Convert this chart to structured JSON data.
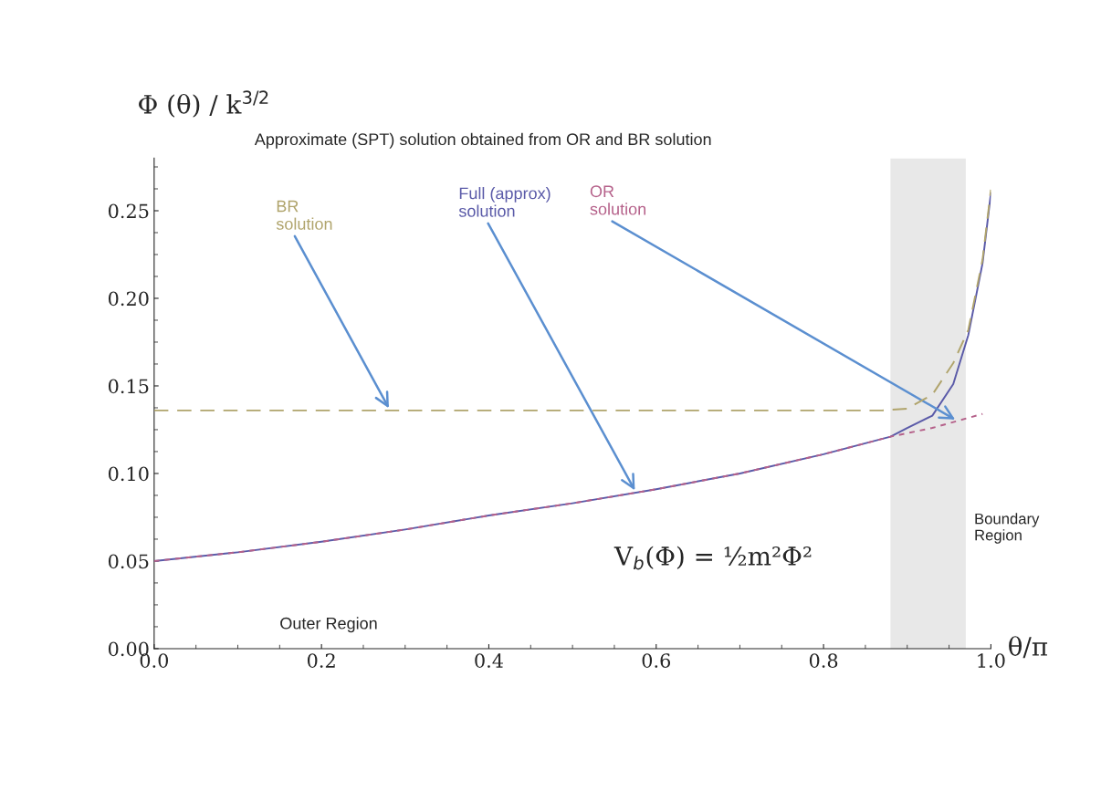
{
  "chart_data": {
    "type": "line",
    "title": "Approximate (SPT) solution obtained from OR and BR solution",
    "xlabel": "θ/π",
    "ylabel": "Φ (θ) / k$^{3/2}$",
    "series": [
      {
        "name": "Full (approx)\nsolution",
        "color": "#5a5aa8",
        "line_style": "solid",
        "x": [
          0,
          0.1,
          0.2,
          0.3,
          0.4,
          0.5,
          0.6,
          0.7,
          0.8,
          0.88,
          0.9,
          0.93,
          0.955,
          0.973,
          0.99,
          1.0
        ],
        "values": [
          0.05,
          0.055,
          0.061,
          0.068,
          0.076,
          0.083,
          0.091,
          0.1,
          0.111,
          0.121,
          0.126,
          0.133,
          0.151,
          0.179,
          0.22,
          0.26
        ]
      },
      {
        "name": "OR\nsolution",
        "color": "#b5618a",
        "line_style": "dotted",
        "x": [
          0,
          0.1,
          0.2,
          0.3,
          0.4,
          0.5,
          0.6,
          0.7,
          0.8,
          0.88,
          0.93,
          0.99
        ],
        "values": [
          0.05,
          0.055,
          0.061,
          0.068,
          0.076,
          0.083,
          0.091,
          0.1,
          0.111,
          0.121,
          0.126,
          0.134
        ]
      },
      {
        "name": "BR\nsolution",
        "color": "#b0a46c",
        "line_style": "dashed",
        "x": [
          0,
          0.87,
          0.9,
          0.93,
          0.955,
          0.973,
          0.99,
          1.0
        ],
        "values": [
          0.136,
          0.136,
          0.137,
          0.145,
          0.163,
          0.182,
          0.222,
          0.262
        ]
      }
    ],
    "annotations": [
      "V$_{b}$(Φ) = ½m²Φ²",
      "Outer Region"
    ],
    "bands": [
      {
        "axis": "x",
        "from": 0.88,
        "to": 0.97,
        "label": "Boundary\nRegion",
        "color": "#e8e8e8"
      }
    ],
    "xlim": [
      0,
      1.0
    ],
    "ylim": [
      0,
      0.28
    ],
    "xticks": [
      {
        "value": 0,
        "label": "0.0"
      },
      0.2,
      0.4,
      0.6,
      0.8,
      {
        "value": 1,
        "label": "1.0"
      }
    ],
    "yticks": [
      {
        "value": 0,
        "label": "0.00"
      },
      0.05,
      {
        "value": 0.1,
        "label": "0.10"
      },
      0.15,
      {
        "value": 0.2,
        "label": "0.20"
      },
      0.25
    ],
    "grid": false,
    "legend": false
  }
}
